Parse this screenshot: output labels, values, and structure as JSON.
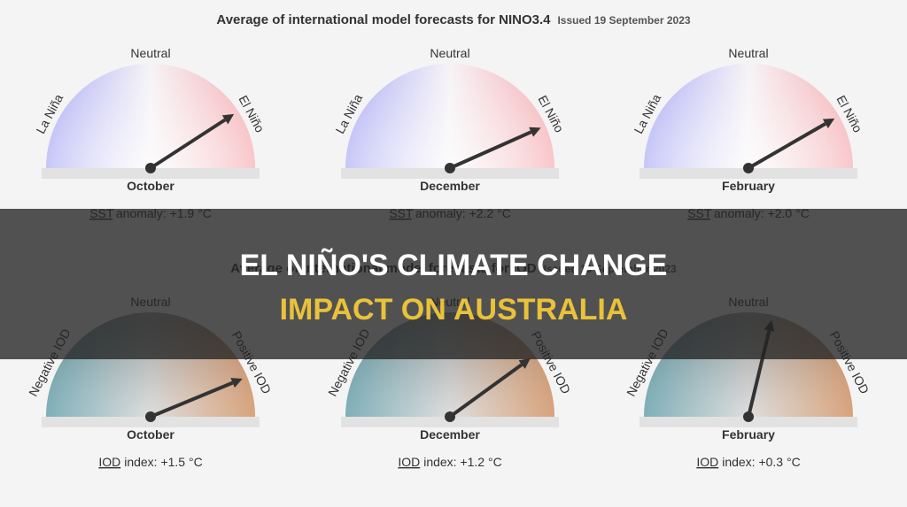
{
  "top": {
    "title": "Average of international model forecasts for NINO3.4",
    "issued": "Issued 19 September 2023",
    "left": "La Niña",
    "centre": "Neutral",
    "right": "El Niño",
    "gauges": [
      {
        "month": "October",
        "abbr": "SST",
        "reading": "anomaly: +1.9 °C"
      },
      {
        "month": "December",
        "abbr": "SST",
        "reading": "anomaly: +2.2 °C"
      },
      {
        "month": "February",
        "abbr": "SST",
        "reading": "anomaly: +2.0 °C"
      }
    ]
  },
  "bottom": {
    "title": "Average of international model forecasts for IOD",
    "issued": "Issued 19 September 2023",
    "left": "Negative IOD",
    "centre": "Neutral",
    "right": "Positive IOD",
    "gauges": [
      {
        "month": "October",
        "abbr": "IOD",
        "reading": "index: +1.5 °C"
      },
      {
        "month": "December",
        "abbr": "IOD",
        "reading": "index: +1.2 °C"
      },
      {
        "month": "February",
        "abbr": "IOD",
        "reading": "index: +0.3 °C"
      }
    ]
  },
  "banner": {
    "line1": "EL NIÑO'S CLIMATE CHANGE",
    "line2": "IMPACT ON AUSTRALIA"
  }
}
